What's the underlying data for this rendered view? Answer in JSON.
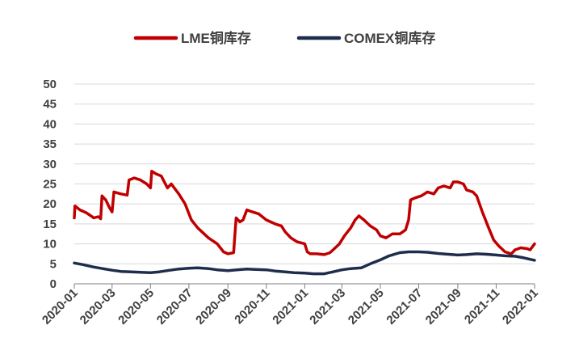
{
  "chart_data": {
    "type": "line",
    "title": "",
    "xlabel": "",
    "ylabel": "",
    "ylim": [
      0,
      50
    ],
    "y_ticks": [
      "0",
      "5",
      "10",
      "15",
      "20",
      "25",
      "30",
      "35",
      "40",
      "45",
      "50"
    ],
    "x_ticks": [
      "2020-01",
      "2020-03",
      "2020-05",
      "2020-07",
      "2020-09",
      "2020-11",
      "2021-01",
      "2021-03",
      "2021-05",
      "2021-07",
      "2021-09",
      "2021-11",
      "2022-01"
    ],
    "grid": "horizontal",
    "legend_position": "top-center",
    "series": [
      {
        "name": "LME铜库存",
        "color": "#c00000",
        "points": [
          [
            "2020-01-01",
            16.5
          ],
          [
            "2020-01-02",
            19.5
          ],
          [
            "2020-01-10",
            18.5
          ],
          [
            "2020-01-20",
            17.8
          ],
          [
            "2020-02-01",
            16.5
          ],
          [
            "2020-02-08",
            16.8
          ],
          [
            "2020-02-12",
            16.3
          ],
          [
            "2020-02-14",
            22.0
          ],
          [
            "2020-02-20",
            21.0
          ],
          [
            "2020-02-26",
            19.0
          ],
          [
            "2020-03-01",
            18.0
          ],
          [
            "2020-03-04",
            23.0
          ],
          [
            "2020-03-15",
            22.5
          ],
          [
            "2020-03-25",
            22.2
          ],
          [
            "2020-03-28",
            26.0
          ],
          [
            "2020-04-05",
            26.5
          ],
          [
            "2020-04-15",
            26.0
          ],
          [
            "2020-04-25",
            25.0
          ],
          [
            "2020-05-01",
            24.0
          ],
          [
            "2020-05-03",
            28.2
          ],
          [
            "2020-05-10",
            27.5
          ],
          [
            "2020-05-18",
            27.0
          ],
          [
            "2020-05-28",
            24.0
          ],
          [
            "2020-06-03",
            25.0
          ],
          [
            "2020-06-15",
            22.5
          ],
          [
            "2020-06-25",
            20.0
          ],
          [
            "2020-07-05",
            16.0
          ],
          [
            "2020-07-15",
            14.0
          ],
          [
            "2020-08-01",
            11.5
          ],
          [
            "2020-08-15",
            10.0
          ],
          [
            "2020-08-25",
            8.0
          ],
          [
            "2020-09-01",
            7.5
          ],
          [
            "2020-09-10",
            7.8
          ],
          [
            "2020-09-14",
            16.5
          ],
          [
            "2020-09-20",
            15.5
          ],
          [
            "2020-09-25",
            16.0
          ],
          [
            "2020-10-01",
            18.5
          ],
          [
            "2020-10-10",
            18.0
          ],
          [
            "2020-10-20",
            17.5
          ],
          [
            "2020-11-01",
            16.0
          ],
          [
            "2020-11-15",
            15.0
          ],
          [
            "2020-11-25",
            14.5
          ],
          [
            "2020-12-01",
            13.0
          ],
          [
            "2020-12-10",
            11.5
          ],
          [
            "2020-12-20",
            10.5
          ],
          [
            "2021-01-01",
            10.0
          ],
          [
            "2021-01-05",
            8.0
          ],
          [
            "2021-01-10",
            7.5
          ],
          [
            "2021-01-20",
            7.5
          ],
          [
            "2021-02-01",
            7.3
          ],
          [
            "2021-02-10",
            7.8
          ],
          [
            "2021-02-15",
            8.5
          ],
          [
            "2021-02-25",
            10.0
          ],
          [
            "2021-03-05",
            12.0
          ],
          [
            "2021-03-15",
            14.0
          ],
          [
            "2021-03-22",
            16.0
          ],
          [
            "2021-03-28",
            17.0
          ],
          [
            "2021-04-05",
            16.0
          ],
          [
            "2021-04-15",
            14.5
          ],
          [
            "2021-04-25",
            13.5
          ],
          [
            "2021-05-01",
            12.0
          ],
          [
            "2021-05-10",
            11.5
          ],
          [
            "2021-05-20",
            12.5
          ],
          [
            "2021-06-01",
            12.5
          ],
          [
            "2021-06-10",
            13.5
          ],
          [
            "2021-06-15",
            16.0
          ],
          [
            "2021-06-18",
            21.0
          ],
          [
            "2021-06-25",
            21.5
          ],
          [
            "2021-07-05",
            22.0
          ],
          [
            "2021-07-15",
            23.0
          ],
          [
            "2021-07-25",
            22.5
          ],
          [
            "2021-08-01",
            24.0
          ],
          [
            "2021-08-10",
            24.5
          ],
          [
            "2021-08-20",
            24.0
          ],
          [
            "2021-08-25",
            25.5
          ],
          [
            "2021-09-01",
            25.5
          ],
          [
            "2021-09-10",
            25.0
          ],
          [
            "2021-09-15",
            23.5
          ],
          [
            "2021-09-25",
            23.0
          ],
          [
            "2021-10-01",
            22.0
          ],
          [
            "2021-10-10",
            18.0
          ],
          [
            "2021-10-20",
            14.0
          ],
          [
            "2021-10-28",
            11.0
          ],
          [
            "2021-11-05",
            9.5
          ],
          [
            "2021-11-15",
            8.0
          ],
          [
            "2021-11-25",
            7.5
          ],
          [
            "2021-12-01",
            8.5
          ],
          [
            "2021-12-10",
            9.0
          ],
          [
            "2021-12-20",
            8.8
          ],
          [
            "2021-12-25",
            8.5
          ],
          [
            "2022-01-01",
            10.0
          ]
        ]
      },
      {
        "name": "COMEX铜库存",
        "color": "#1f2d4d",
        "points": [
          [
            "2020-01-01",
            5.2
          ],
          [
            "2020-01-15",
            4.8
          ],
          [
            "2020-02-01",
            4.2
          ],
          [
            "2020-02-15",
            3.8
          ],
          [
            "2020-03-01",
            3.4
          ],
          [
            "2020-03-15",
            3.1
          ],
          [
            "2020-04-01",
            3.0
          ],
          [
            "2020-04-15",
            2.9
          ],
          [
            "2020-05-01",
            2.8
          ],
          [
            "2020-05-15",
            3.0
          ],
          [
            "2020-06-01",
            3.4
          ],
          [
            "2020-06-15",
            3.7
          ],
          [
            "2020-07-01",
            3.9
          ],
          [
            "2020-07-15",
            4.0
          ],
          [
            "2020-08-01",
            3.8
          ],
          [
            "2020-08-15",
            3.5
          ],
          [
            "2020-09-01",
            3.3
          ],
          [
            "2020-09-15",
            3.5
          ],
          [
            "2020-10-01",
            3.7
          ],
          [
            "2020-10-15",
            3.6
          ],
          [
            "2020-11-01",
            3.5
          ],
          [
            "2020-11-15",
            3.2
          ],
          [
            "2020-12-01",
            3.0
          ],
          [
            "2020-12-15",
            2.8
          ],
          [
            "2021-01-01",
            2.7
          ],
          [
            "2021-01-15",
            2.5
          ],
          [
            "2021-02-01",
            2.5
          ],
          [
            "2021-02-15",
            3.0
          ],
          [
            "2021-03-01",
            3.5
          ],
          [
            "2021-03-15",
            3.8
          ],
          [
            "2021-04-01",
            4.0
          ],
          [
            "2021-04-15",
            5.0
          ],
          [
            "2021-05-01",
            6.0
          ],
          [
            "2021-05-15",
            7.0
          ],
          [
            "2021-06-01",
            7.8
          ],
          [
            "2021-06-15",
            8.0
          ],
          [
            "2021-07-01",
            8.0
          ],
          [
            "2021-07-15",
            7.9
          ],
          [
            "2021-08-01",
            7.6
          ],
          [
            "2021-08-15",
            7.4
          ],
          [
            "2021-09-01",
            7.2
          ],
          [
            "2021-09-15",
            7.3
          ],
          [
            "2021-10-01",
            7.5
          ],
          [
            "2021-10-15",
            7.4
          ],
          [
            "2021-11-01",
            7.2
          ],
          [
            "2021-11-15",
            7.0
          ],
          [
            "2021-12-01",
            6.9
          ],
          [
            "2021-12-15",
            6.5
          ],
          [
            "2022-01-01",
            5.9
          ]
        ]
      }
    ]
  }
}
